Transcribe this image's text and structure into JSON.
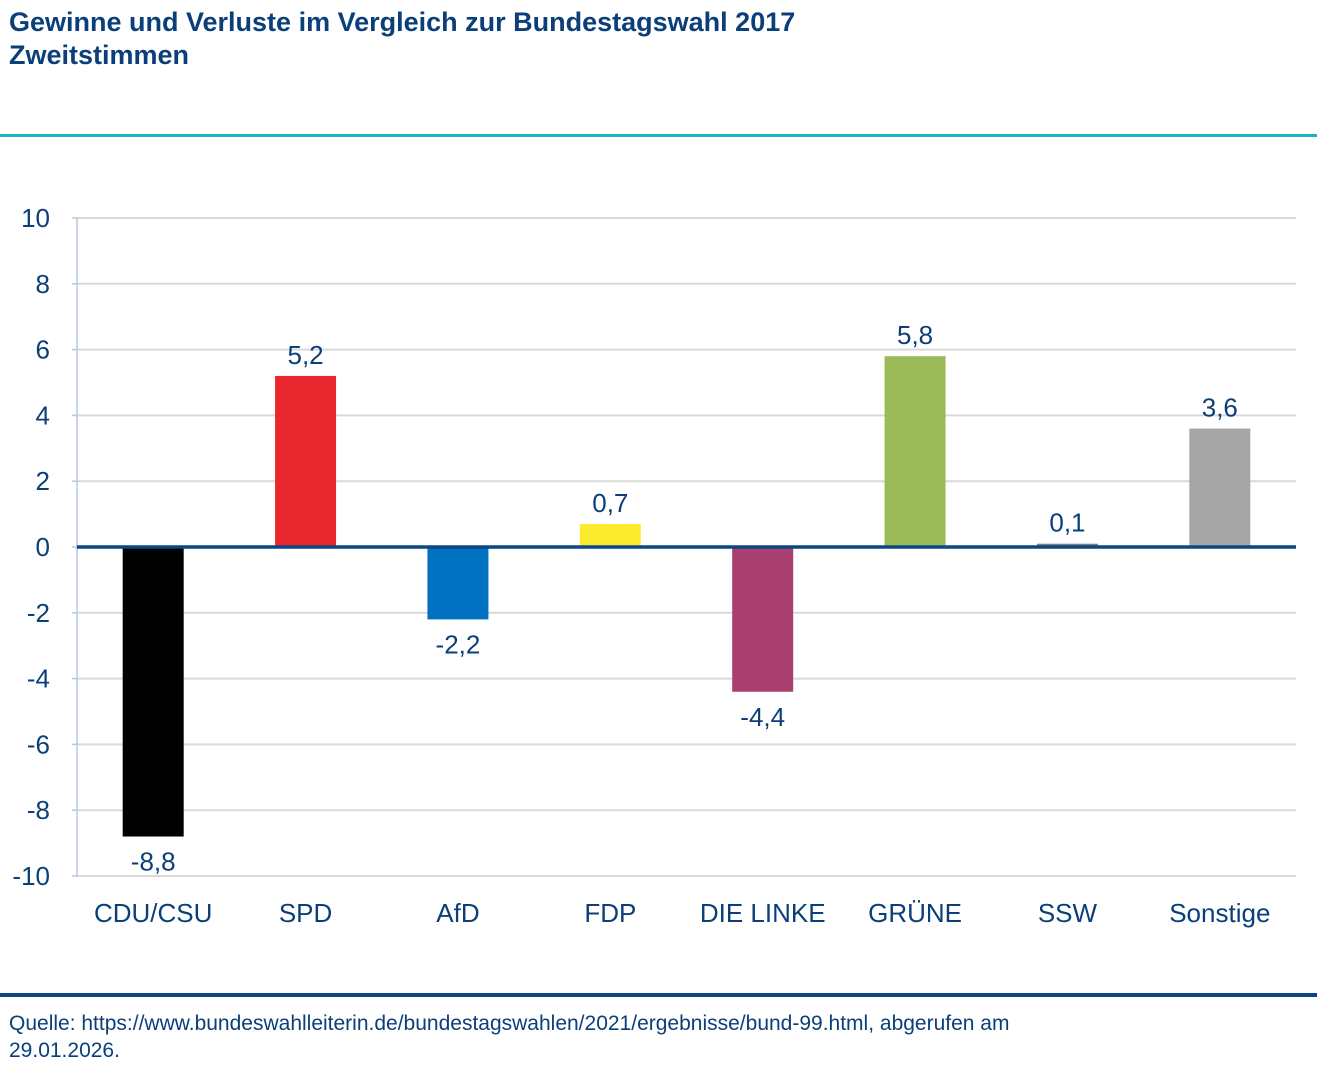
{
  "header": {
    "title_line1": "Gewinne und Verluste im Vergleich zur Bundestagswahl 2017",
    "title_line2": "Zweitstimmen"
  },
  "footer": {
    "source_line1": "Quelle: https://www.bundeswahlleiterin.de/bundestagswahlen/2021/ergebnisse/bund-99.html, abgerufen am",
    "source_line2": "29.01.2026."
  },
  "colors": {
    "text": "#0b3f7a",
    "accent_rule": "#17b3be",
    "zero_line": "#0b4784",
    "grid": "#d9d9d9",
    "axis": "#b8c8dc"
  },
  "chart_data": {
    "type": "bar",
    "title": "Gewinne und Verluste im Vergleich zur Bundestagswahl 2017",
    "subtitle": "Zweitstimmen",
    "xlabel": "",
    "ylabel": "",
    "ylim": [
      -10,
      10
    ],
    "yticks": [
      10,
      8,
      6,
      4,
      2,
      0,
      -2,
      -4,
      -6,
      -8,
      -10
    ],
    "ytick_labels": [
      "10",
      "8",
      "6",
      "4",
      "2",
      "0",
      "-2",
      "-4",
      "-6",
      "-8",
      "-10"
    ],
    "grid": true,
    "legend": "none",
    "categories": [
      "CDU/CSU",
      "SPD",
      "AfD",
      "FDP",
      "DIE LINKE",
      "GRÜNE",
      "SSW",
      "Sonstige"
    ],
    "values": [
      -8.8,
      5.2,
      -2.2,
      0.7,
      -4.4,
      5.8,
      0.1,
      3.6
    ],
    "value_labels": [
      "-8,8",
      "5,2",
      "-2,2",
      "0,7",
      "-4,4",
      "5,8",
      "0,1",
      "3,6"
    ],
    "bar_colors": [
      "#000000",
      "#e8282e",
      "#0070c0",
      "#fbea2e",
      "#a93f6f",
      "#9bbb59",
      "#7f7f7f",
      "#a6a6a6"
    ]
  }
}
